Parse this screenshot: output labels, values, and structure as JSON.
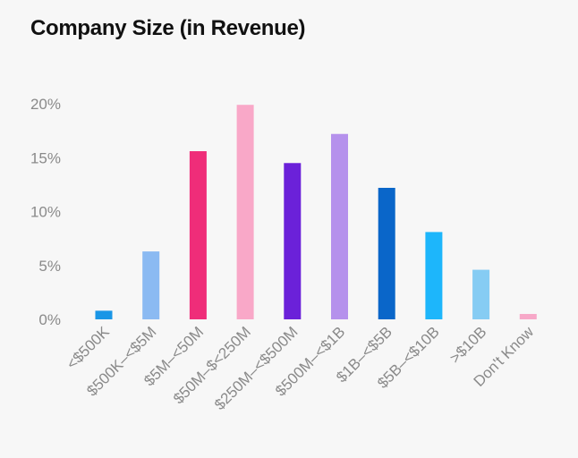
{
  "chart_data": {
    "type": "bar",
    "title": "Company Size (in Revenue)",
    "xlabel": "",
    "ylabel": "",
    "ylim": [
      0,
      20
    ],
    "yticks": [
      0,
      5,
      10,
      15,
      20
    ],
    "ytick_labels": [
      "0%",
      "5%",
      "10%",
      "15%",
      "20%"
    ],
    "grid": false,
    "categories": [
      "<$500K",
      "$500K–<$5M",
      "$5M–<50M",
      "$50M–$<250M",
      "$250M–<$500M",
      "$500M–<$1B",
      "$1B–<$5B",
      "$5B–<$10B",
      ">$10B",
      "Don't Know"
    ],
    "values": [
      0.8,
      6.3,
      15.6,
      19.9,
      14.5,
      17.2,
      12.2,
      8.1,
      4.6,
      0.5
    ],
    "colors": [
      "#1a96e6",
      "#8bbaf2",
      "#ef2d79",
      "#f9a8c8",
      "#6b21d9",
      "#b591ec",
      "#0a66c9",
      "#1db6fb",
      "#86ccf3",
      "#f7a8c8"
    ]
  }
}
